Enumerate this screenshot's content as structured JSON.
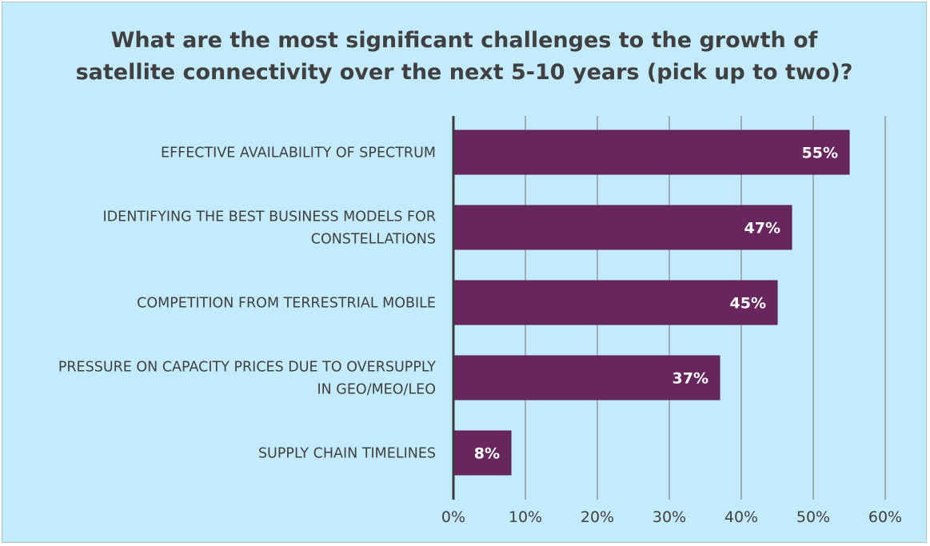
{
  "chart_data": {
    "type": "bar",
    "orientation": "horizontal",
    "title_lines": [
      "What are the most significant challenges to the growth of",
      "satellite connectivity over the next 5-10 years (pick up to two)?"
    ],
    "categories": [
      [
        "EFFECTIVE AVAILABILITY OF SPECTRUM"
      ],
      [
        "IDENTIFYING THE BEST BUSINESS MODELS FOR",
        "CONSTELLATIONS"
      ],
      [
        "COMPETITION FROM TERRESTRIAL MOBILE"
      ],
      [
        "PRESSURE ON CAPACITY PRICES DUE TO OVERSUPPLY",
        "IN GEO/MEO/LEO"
      ],
      [
        "SUPPLY CHAIN TIMELINES"
      ]
    ],
    "values": [
      55,
      47,
      45,
      37,
      8
    ],
    "data_labels": [
      "55%",
      "47%",
      "45%",
      "37%",
      "8%"
    ],
    "xlim": [
      0,
      60
    ],
    "ticks": [
      0,
      10,
      20,
      30,
      40,
      50,
      60
    ],
    "tick_labels": [
      "0%",
      "10%",
      "20%",
      "30%",
      "40%",
      "50%",
      "60%"
    ],
    "grid": true,
    "legend": "none",
    "colors": {
      "background": "#c3ebfc",
      "bar": "#68265f",
      "gridline": "#8c9ba3",
      "axis": "#3a3a3a",
      "text": "#404040"
    }
  }
}
